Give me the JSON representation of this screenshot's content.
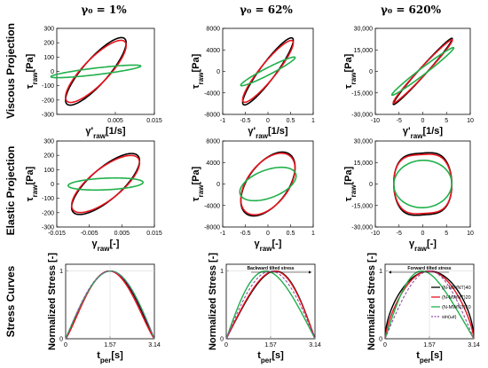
{
  "figure": {
    "col_titles": [
      "γ₀ = 1%",
      "γ₀ = 62%",
      "γ₀ = 620%"
    ],
    "row_titles": [
      "Viscous Projection",
      "Elastic Projection",
      "Stress Curves"
    ]
  },
  "colors": {
    "black": "#000000",
    "red": "#e8141e",
    "green": "#21b04b",
    "purple": "#8e4fa6"
  },
  "chart_data": [
    {
      "id": "viscous-1",
      "type": "line",
      "xlabel": "γ'raw[1/s]",
      "ylabel": "τraw[Pa]",
      "xlim": [
        -0.01,
        0.015
      ],
      "ylim": [
        -300,
        300
      ],
      "xticks": [
        {
          "v": 0.005,
          "t": "0.005"
        },
        {
          "v": 0.015,
          "t": "0.015"
        }
      ],
      "yticks": [
        {
          "v": 300,
          "t": "300"
        },
        {
          "v": 200,
          "t": "200"
        },
        {
          "v": 100,
          "t": "100"
        },
        {
          "v": 0,
          "t": "0"
        },
        {
          "v": -100,
          "t": "-100"
        },
        {
          "v": -200,
          "t": "-200"
        },
        {
          "v": -300,
          "t": "-300"
        }
      ],
      "series": [
        {
          "color": "black",
          "cx": 0.0,
          "cy": 0.0,
          "a": [
            0.0075,
            225
          ],
          "b": [
            -0.002,
            70
          ],
          "width": 1.6
        },
        {
          "color": "red",
          "cx": 0.0,
          "cy": 0.0,
          "a": [
            0.0075,
            205
          ],
          "b": [
            -0.002,
            70
          ],
          "width": 1.6
        },
        {
          "color": "green",
          "cx": 0.0,
          "cy": 0.0,
          "a": [
            0.0115,
            38
          ],
          "b": [
            -0.0004,
            22
          ],
          "width": 1.6
        }
      ]
    },
    {
      "id": "viscous-62",
      "type": "line",
      "xlabel": "γ'raw[1/s]",
      "ylabel": "τraw[Pa]",
      "xlim": [
        -1,
        1
      ],
      "ylim": [
        -8000,
        8000
      ],
      "xticks": [
        {
          "v": -1,
          "t": "-1"
        },
        {
          "v": -0.5,
          "t": "-0.5"
        },
        {
          "v": 0,
          "t": "0"
        },
        {
          "v": 0.5,
          "t": "0.5"
        },
        {
          "v": 1,
          "t": "1"
        }
      ],
      "yticks": [
        {
          "v": 8000,
          "t": "8000"
        },
        {
          "v": 4000,
          "t": "4000"
        },
        {
          "v": 0,
          "t": "0"
        },
        {
          "v": -4000,
          "t": "-4000"
        },
        {
          "v": -8000,
          "t": "-8000"
        }
      ],
      "series": [
        {
          "color": "black",
          "cx": 0.0,
          "cy": 0.0,
          "a": [
            0.55,
            6100
          ],
          "b": [
            -0.1,
            1300
          ],
          "width": 1.6
        },
        {
          "color": "red",
          "cx": 0.0,
          "cy": 0.0,
          "a": [
            0.55,
            5600
          ],
          "b": [
            -0.1,
            1300
          ],
          "width": 1.6
        },
        {
          "color": "green",
          "cx": 0.0,
          "cy": 0.0,
          "a": [
            0.6,
            2600
          ],
          "b": [
            -0.03,
            600
          ],
          "width": 1.6
        }
      ]
    },
    {
      "id": "viscous-620",
      "type": "line",
      "xlabel": "γ'raw[1/s]",
      "ylabel": "τraw[Pa]",
      "xlim": [
        -10,
        10
      ],
      "ylim": [
        -30000,
        30000
      ],
      "xticks": [
        {
          "v": -10,
          "t": "-10"
        },
        {
          "v": -5,
          "t": "-5"
        },
        {
          "v": 0,
          "t": "0"
        },
        {
          "v": 5,
          "t": "5"
        },
        {
          "v": 10,
          "t": "10"
        }
      ],
      "yticks": [
        {
          "v": 30000,
          "t": "30,000"
        },
        {
          "v": 15000,
          "t": "15,000"
        },
        {
          "v": 0,
          "t": "0"
        },
        {
          "v": -15000,
          "t": "-15,000"
        },
        {
          "v": -30000,
          "t": "-30,000"
        }
      ],
      "series": [
        {
          "color": "black",
          "cx": 0.0,
          "cy": 0.0,
          "a": [
            6.2,
            23000
          ],
          "b": [
            -0.5,
            2000
          ],
          "width": 1.6
        },
        {
          "color": "red",
          "cx": 0.0,
          "cy": 0.0,
          "a": [
            6.2,
            22000
          ],
          "b": [
            -0.5,
            2000
          ],
          "width": 1.6
        },
        {
          "color": "green",
          "cx": 0.0,
          "cy": 0.0,
          "a": [
            6.5,
            16500
          ],
          "b": [
            -0.4,
            1800
          ],
          "width": 1.6
        }
      ]
    },
    {
      "id": "elastic-1",
      "type": "line",
      "xlabel": "γraw[-]",
      "ylabel": "τraw[Pa]",
      "xlim": [
        -0.015,
        0.015
      ],
      "ylim": [
        -300,
        300
      ],
      "xticks": [
        {
          "v": -0.015,
          "t": "-0.015"
        },
        {
          "v": -0.005,
          "t": "-0.005"
        },
        {
          "v": 0.005,
          "t": "0.005"
        },
        {
          "v": 0.015,
          "t": "0.015"
        }
      ],
      "yticks": [
        {
          "v": 300,
          "t": "300"
        },
        {
          "v": 200,
          "t": "200"
        },
        {
          "v": 100,
          "t": "100"
        },
        {
          "v": 0,
          "t": "0"
        },
        {
          "v": -100,
          "t": "-100"
        },
        {
          "v": -200,
          "t": "-200"
        },
        {
          "v": -300,
          "t": "-300"
        }
      ],
      "series": [
        {
          "color": "black",
          "cx": 0.0,
          "cy": 0.0,
          "a": [
            0.01,
            195
          ],
          "b": [
            -0.003,
            85
          ],
          "width": 1.6
        },
        {
          "color": "red",
          "cx": 0.0,
          "cy": 0.0,
          "a": [
            0.01,
            180
          ],
          "b": [
            -0.003,
            85
          ],
          "width": 1.6
        },
        {
          "color": "green",
          "cx": 0.0,
          "cy": 0.0,
          "a": [
            0.0115,
            13
          ],
          "b": [
            -0.0005,
            40
          ],
          "width": 1.6
        }
      ]
    },
    {
      "id": "elastic-62",
      "type": "line",
      "xlabel": "γraw[-]",
      "ylabel": "τraw[Pa]",
      "xlim": [
        -1,
        1
      ],
      "ylim": [
        -8000,
        8000
      ],
      "xticks": [
        {
          "v": -1,
          "t": "-1"
        },
        {
          "v": -0.5,
          "t": "-0.5"
        },
        {
          "v": 0,
          "t": "0"
        },
        {
          "v": 0.5,
          "t": "0.5"
        },
        {
          "v": 1,
          "t": "1"
        }
      ],
      "yticks": [
        {
          "v": 8000,
          "t": "8000"
        },
        {
          "v": 4000,
          "t": "4000"
        },
        {
          "v": 0,
          "t": "0"
        },
        {
          "v": -4000,
          "t": "-4000"
        },
        {
          "v": -8000,
          "t": "-8000"
        }
      ],
      "series": [
        {
          "color": "black",
          "cx": 0.0,
          "cy": 0.0,
          "a": [
            0.58,
            4300
          ],
          "b": [
            -0.15,
            4100
          ],
          "width": 1.6
        },
        {
          "color": "red",
          "cx": 0.0,
          "cy": 0.0,
          "a": [
            0.58,
            4000
          ],
          "b": [
            -0.15,
            4100
          ],
          "width": 1.6
        },
        {
          "color": "green",
          "cx": 0.0,
          "cy": 0.0,
          "a": [
            0.62,
            1700
          ],
          "b": [
            -0.05,
            2600
          ],
          "width": 1.6
        }
      ]
    },
    {
      "id": "elastic-620",
      "type": "line",
      "xlabel": "γraw[-]",
      "ylabel": "τraw[Pa]",
      "xlim": [
        -10,
        10
      ],
      "ylim": [
        -30000,
        30000
      ],
      "xticks": [
        {
          "v": -10,
          "t": "-10"
        },
        {
          "v": -5,
          "t": "-5"
        },
        {
          "v": 0,
          "t": "0"
        },
        {
          "v": 5,
          "t": "5"
        },
        {
          "v": 10,
          "t": "10"
        }
      ],
      "yticks": [
        {
          "v": 30000,
          "t": "30,000"
        },
        {
          "v": 15000,
          "t": "15,000"
        },
        {
          "v": 0,
          "t": "0"
        },
        {
          "v": -15000,
          "t": "-15,000"
        },
        {
          "v": -30000,
          "t": "-30,000"
        }
      ],
      "series": [
        {
          "color": "black",
          "cx": 0.0,
          "cy": 0.0,
          "a": [
            6.1,
            1500
          ],
          "b": [
            -0.3,
            21500
          ],
          "width": 1.6,
          "squircle": true
        },
        {
          "color": "red",
          "cx": 0.0,
          "cy": 0.0,
          "a": [
            6.1,
            1200
          ],
          "b": [
            -0.3,
            20500
          ],
          "width": 1.6,
          "squircle": true
        },
        {
          "color": "green",
          "cx": 0.0,
          "cy": 0.0,
          "a": [
            6.1,
            900
          ],
          "b": [
            -0.2,
            16500
          ],
          "width": 1.6
        }
      ]
    },
    {
      "id": "stress-1",
      "type": "line",
      "xlabel": "tper[s]",
      "ylabel": "Normalized Stress [-]",
      "xlim": [
        0,
        3.14
      ],
      "ylim": [
        0,
        1.1
      ],
      "xticks": [
        {
          "v": 0,
          "t": "0"
        },
        {
          "v": 1.57,
          "t": "1.57"
        },
        {
          "v": 3.14,
          "t": "3.14"
        }
      ],
      "yticks": [
        {
          "v": 1,
          "t": "1"
        },
        {
          "v": 0,
          "t": "0"
        }
      ],
      "curves": [
        {
          "color": "black",
          "skew": 0.0,
          "power": 1.08,
          "dash": false
        },
        {
          "color": "red",
          "skew": 0.03,
          "power": 1.18,
          "dash": false
        },
        {
          "color": "green",
          "skew": -0.02,
          "power": 1.0,
          "dash": false
        },
        {
          "color": "purple",
          "skew": 0.0,
          "power": 1.0,
          "dash": true
        }
      ]
    },
    {
      "id": "stress-62",
      "type": "line",
      "xlabel": "tper[s]",
      "ylabel": "Normalized Stress [-]",
      "xlim": [
        0,
        3.14
      ],
      "ylim": [
        0,
        1.1
      ],
      "xticks": [
        {
          "v": 0,
          "t": "0"
        },
        {
          "v": 1.57,
          "t": "1.57"
        },
        {
          "v": 3.14,
          "t": "3.14"
        }
      ],
      "yticks": [
        {
          "v": 1,
          "t": "1"
        },
        {
          "v": 0,
          "t": "0"
        }
      ],
      "annotation": "Backward tilted stress",
      "curves": [
        {
          "color": "black",
          "skew": -0.18,
          "power": 1.0,
          "dash": false
        },
        {
          "color": "red",
          "skew": -0.15,
          "power": 1.0,
          "dash": false
        },
        {
          "color": "green",
          "skew": 0.18,
          "power": 1.0,
          "dash": false
        },
        {
          "color": "purple",
          "skew": 0.0,
          "power": 1.0,
          "dash": true
        }
      ]
    },
    {
      "id": "stress-620",
      "type": "line",
      "xlabel": "tper[s]",
      "ylabel": "Normalized Stress [-]",
      "xlim": [
        0,
        3.14
      ],
      "ylim": [
        0,
        1.1
      ],
      "xticks": [
        {
          "v": 0,
          "t": "0"
        },
        {
          "v": 1.57,
          "t": "1.57"
        },
        {
          "v": 3.14,
          "t": "3.14"
        }
      ],
      "yticks": [
        {
          "v": 1,
          "t": "1"
        },
        {
          "v": 0,
          "t": "0"
        }
      ],
      "annotation": "Forward tilted stress",
      "legend": [
        "(N-MWNT)40",
        "(N-MWNT)20",
        "(N-MWNT)10",
        "sin(ωt)"
      ],
      "curves": [
        {
          "color": "black",
          "skew": 0.0,
          "power": 0.55,
          "dash": false
        },
        {
          "color": "red",
          "skew": 0.02,
          "power": 0.7,
          "dash": false
        },
        {
          "color": "green",
          "skew": 0.28,
          "power": 1.0,
          "dash": false
        },
        {
          "color": "purple",
          "skew": 0.0,
          "power": 1.0,
          "dash": true
        }
      ]
    }
  ]
}
